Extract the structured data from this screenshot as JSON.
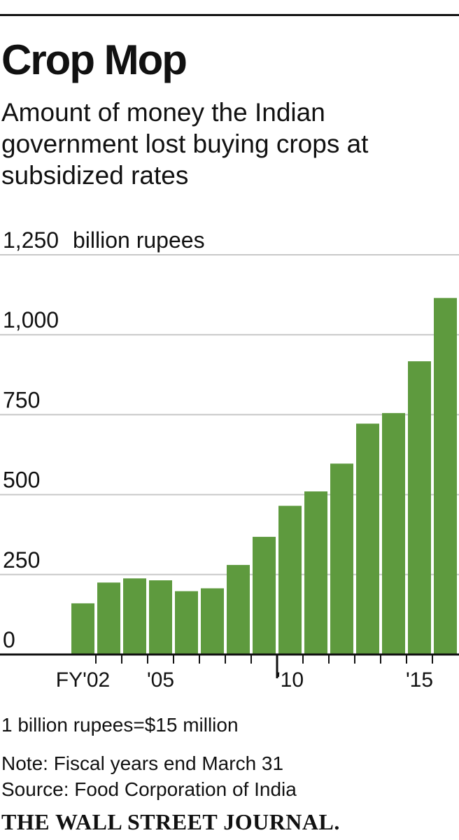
{
  "title": "Crop Mop",
  "subtitle": "Amount of money the Indian government lost buying crops at subsidized rates",
  "notes": {
    "conversion": "1 billion rupees=$15 million",
    "fiscal": "Note: Fiscal years end March 31",
    "source": "Source: Food Corporation of India"
  },
  "publisher": "THE WALL STREET JOURNAL.",
  "colors": {
    "bar": "#5e9a3e",
    "grid": "#c8c8c8",
    "axis": "#111111"
  },
  "chart_data": {
    "type": "bar",
    "unit_label": "billion rupees",
    "categories": [
      "FY'02",
      "FY'03",
      "FY'04",
      "FY'05",
      "FY'06",
      "FY'07",
      "FY'08",
      "FY'09",
      "FY'10",
      "FY'11",
      "FY'12",
      "FY'13",
      "FY'14",
      "FY'15",
      "FY'16"
    ],
    "x_tick_labels": [
      "FY'02",
      "",
      "",
      "'05",
      "",
      "",
      "",
      "",
      "'10",
      "",
      "",
      "",
      "",
      "'15",
      ""
    ],
    "values": [
      160,
      225,
      238,
      232,
      198,
      207,
      280,
      368,
      465,
      510,
      597,
      722,
      755,
      917,
      1115
    ],
    "y_ticks": [
      0,
      250,
      500,
      750,
      1000,
      1250
    ],
    "y_tick_labels": [
      "0",
      "250",
      "500",
      "750",
      "1,000",
      "1,250"
    ],
    "ylim": [
      0,
      1250
    ],
    "grid": true
  }
}
